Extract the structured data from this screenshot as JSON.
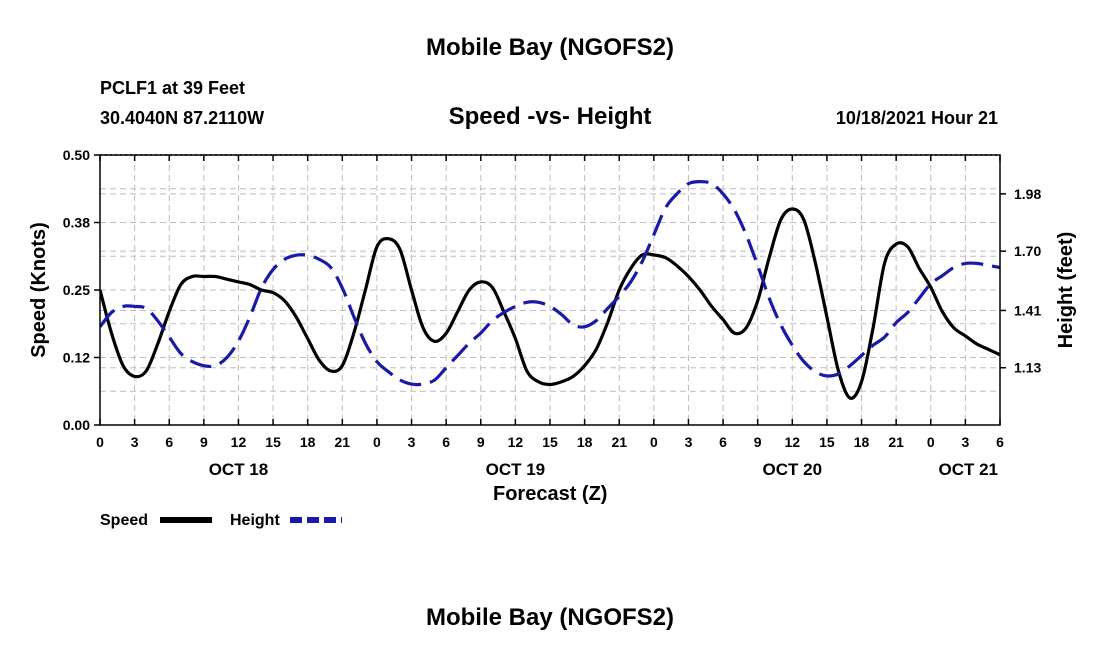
{
  "header": {
    "title": "Mobile Bay (NGOFS2)",
    "station": "PCLF1 at 39 Feet",
    "coords": "30.4040N  87.2110W",
    "subtitle": "Speed -vs- Height",
    "datetime": "10/18/2021 Hour 21",
    "footer_title": "Mobile Bay (NGOFS2)"
  },
  "legend": {
    "speed_label": "Speed",
    "height_label": "Height",
    "speed_color": "#000000",
    "height_color": "#1a1aa8"
  },
  "chart_data": {
    "type": "line",
    "title": "Speed -vs- Height",
    "xlabel": "Forecast (Z)",
    "ylabel": "Speed (Knots)",
    "y2label": "Height (feet)",
    "xlim_hours": [
      0,
      78
    ],
    "ylim": [
      0.0,
      0.5
    ],
    "y2lim": [
      0.85,
      2.17
    ],
    "yticks": [
      "0.50",
      "0.38",
      "0.25",
      "0.12",
      "0.00"
    ],
    "yticks_values": [
      0.5,
      0.375,
      0.25,
      0.125,
      0.0
    ],
    "y2ticks": [
      "1.98",
      "1.70",
      "1.41",
      "1.13"
    ],
    "y2ticks_values": [
      1.98,
      1.7,
      1.41,
      1.13
    ],
    "xtick_labels": [
      "0",
      "3",
      "6",
      "9",
      "12",
      "15",
      "18",
      "21",
      "0",
      "3",
      "6",
      "9",
      "12",
      "15",
      "18",
      "21",
      "0",
      "3",
      "6",
      "9",
      "12",
      "15",
      "18",
      "21",
      "0",
      "3",
      "6"
    ],
    "day_labels": [
      {
        "label": "OCT 18",
        "hour": 12
      },
      {
        "label": "OCT 19",
        "hour": 36
      },
      {
        "label": "OCT 20",
        "hour": 60
      },
      {
        "label": "OCT 21",
        "hour": 84
      }
    ],
    "grid": true,
    "series": [
      {
        "name": "Speed",
        "axis": "left",
        "color": "#000000",
        "dash": "solid",
        "x": [
          0,
          1,
          2,
          3,
          4,
          5,
          6,
          7,
          8,
          9,
          10,
          11,
          12,
          13,
          14,
          15,
          16,
          17,
          18,
          19,
          20,
          21,
          22,
          23,
          24,
          25,
          26,
          27,
          28,
          29,
          30,
          31,
          32,
          33,
          34,
          35,
          36,
          37,
          38,
          39,
          40,
          41,
          42,
          43,
          44,
          45,
          46,
          47,
          48,
          49,
          50,
          51,
          52,
          53,
          54,
          55,
          56,
          57,
          58,
          59,
          60,
          61,
          62,
          63,
          64,
          65,
          66,
          67,
          68,
          69,
          70,
          71,
          72,
          73,
          74,
          75,
          76,
          77,
          78
        ],
        "values": [
          0.25,
          0.17,
          0.11,
          0.09,
          0.1,
          0.15,
          0.21,
          0.26,
          0.275,
          0.275,
          0.275,
          0.27,
          0.265,
          0.26,
          0.25,
          0.245,
          0.23,
          0.2,
          0.16,
          0.12,
          0.1,
          0.11,
          0.17,
          0.25,
          0.33,
          0.345,
          0.325,
          0.25,
          0.18,
          0.155,
          0.17,
          0.21,
          0.25,
          0.265,
          0.255,
          0.21,
          0.16,
          0.1,
          0.08,
          0.075,
          0.08,
          0.09,
          0.11,
          0.14,
          0.19,
          0.25,
          0.29,
          0.315,
          0.315,
          0.31,
          0.295,
          0.275,
          0.25,
          0.22,
          0.195,
          0.17,
          0.18,
          0.23,
          0.31,
          0.38,
          0.4,
          0.38,
          0.3,
          0.2,
          0.1,
          0.05,
          0.08,
          0.18,
          0.3,
          0.335,
          0.33,
          0.29,
          0.255,
          0.21,
          0.18,
          0.165,
          0.15,
          0.14,
          0.13
        ]
      },
      {
        "name": "Height",
        "axis": "right",
        "color": "#1a1aa8",
        "dash": "dashed",
        "x": [
          0,
          1,
          2,
          3,
          4,
          5,
          6,
          7,
          8,
          9,
          10,
          11,
          12,
          13,
          14,
          15,
          16,
          17,
          18,
          19,
          20,
          21,
          22,
          23,
          24,
          25,
          26,
          27,
          28,
          29,
          30,
          31,
          32,
          33,
          34,
          35,
          36,
          37,
          38,
          39,
          40,
          41,
          42,
          43,
          44,
          45,
          46,
          47,
          48,
          49,
          50,
          51,
          52,
          53,
          54,
          55,
          56,
          57,
          58,
          59,
          60,
          61,
          62,
          63,
          64,
          65,
          66,
          67,
          68,
          69,
          70,
          71,
          72,
          73,
          74,
          75,
          76,
          77,
          78
        ],
        "values": [
          1.33,
          1.4,
          1.43,
          1.43,
          1.42,
          1.36,
          1.28,
          1.2,
          1.16,
          1.14,
          1.14,
          1.18,
          1.26,
          1.38,
          1.52,
          1.61,
          1.66,
          1.68,
          1.68,
          1.66,
          1.62,
          1.52,
          1.38,
          1.25,
          1.16,
          1.11,
          1.07,
          1.05,
          1.05,
          1.07,
          1.13,
          1.19,
          1.25,
          1.3,
          1.36,
          1.4,
          1.43,
          1.45,
          1.45,
          1.43,
          1.39,
          1.34,
          1.33,
          1.36,
          1.42,
          1.48,
          1.55,
          1.65,
          1.78,
          1.91,
          1.98,
          2.03,
          2.04,
          2.03,
          1.98,
          1.9,
          1.78,
          1.63,
          1.47,
          1.34,
          1.24,
          1.16,
          1.11,
          1.09,
          1.1,
          1.14,
          1.19,
          1.24,
          1.28,
          1.35,
          1.4,
          1.47,
          1.54,
          1.58,
          1.62,
          1.64,
          1.64,
          1.63,
          1.62
        ]
      }
    ]
  }
}
